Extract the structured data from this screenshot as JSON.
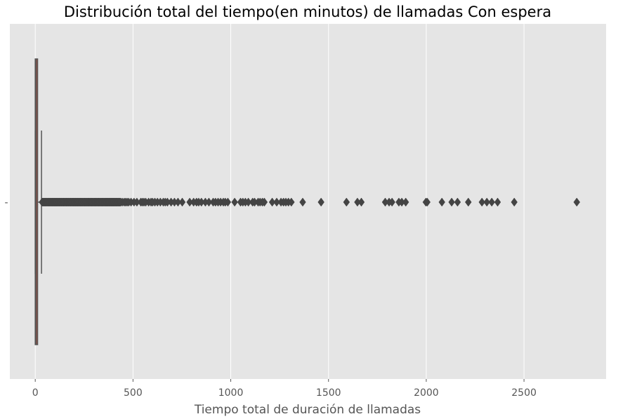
{
  "chart_data": {
    "type": "boxplot",
    "title": "Distribución total del tiempo(en minutos) de llamadas Con espera",
    "xlabel": "Tiempo total de duración de llamadas",
    "ylabel": "",
    "orientation": "horizontal",
    "xlim": [
      -130,
      2920
    ],
    "x_ticks": [
      0,
      500,
      1000,
      1500,
      2000,
      2500
    ],
    "y_tick_labels": [
      "-"
    ],
    "grid": true,
    "colors": {
      "background": "#e5e5e5",
      "grid": "#ffffff",
      "box_fill": "#e24a33",
      "box_edge": "#555555",
      "outlier": "#444444"
    },
    "box": {
      "min": 0,
      "q1": 0,
      "median": 5,
      "q3": 12,
      "whisker_high": 32
    },
    "outliers": [
      35,
      38,
      41,
      44,
      47,
      50,
      53,
      56,
      59,
      62,
      65,
      68,
      71,
      74,
      77,
      80,
      83,
      86,
      89,
      92,
      95,
      98,
      101,
      104,
      107,
      110,
      113,
      116,
      119,
      122,
      125,
      128,
      131,
      134,
      137,
      140,
      143,
      146,
      149,
      152,
      155,
      158,
      161,
      164,
      167,
      170,
      173,
      176,
      179,
      182,
      185,
      188,
      191,
      194,
      197,
      200,
      203,
      206,
      209,
      212,
      215,
      218,
      221,
      224,
      227,
      230,
      233,
      236,
      239,
      242,
      245,
      248,
      251,
      254,
      257,
      260,
      263,
      266,
      269,
      272,
      275,
      278,
      281,
      284,
      287,
      290,
      293,
      296,
      299,
      302,
      305,
      308,
      311,
      314,
      317,
      320,
      323,
      326,
      329,
      332,
      335,
      338,
      341,
      344,
      347,
      350,
      353,
      356,
      359,
      362,
      365,
      368,
      371,
      374,
      377,
      380,
      383,
      386,
      389,
      392,
      395,
      398,
      401,
      404,
      407,
      410,
      413,
      416,
      419,
      422,
      425,
      428,
      431,
      434,
      437,
      445,
      455,
      462,
      470,
      478,
      490,
      505,
      520,
      540,
      548,
      556,
      565,
      580,
      592,
      600,
      612,
      625,
      640,
      655,
      665,
      676,
      695,
      712,
      730,
      752,
      790,
      810,
      825,
      836,
      850,
      870,
      888,
      910,
      922,
      935,
      948,
      962,
      972,
      985,
      1020,
      1050,
      1062,
      1075,
      1090,
      1112,
      1122,
      1140,
      1150,
      1162,
      1172,
      1212,
      1235,
      1257,
      1270,
      1282,
      1295,
      1310,
      1368,
      1462,
      1592,
      1648,
      1668,
      1790,
      1810,
      1825,
      1860,
      1875,
      1895,
      1998,
      2005,
      2080,
      2130,
      2160,
      2215,
      2285,
      2310,
      2335,
      2365,
      2450,
      2770
    ]
  }
}
